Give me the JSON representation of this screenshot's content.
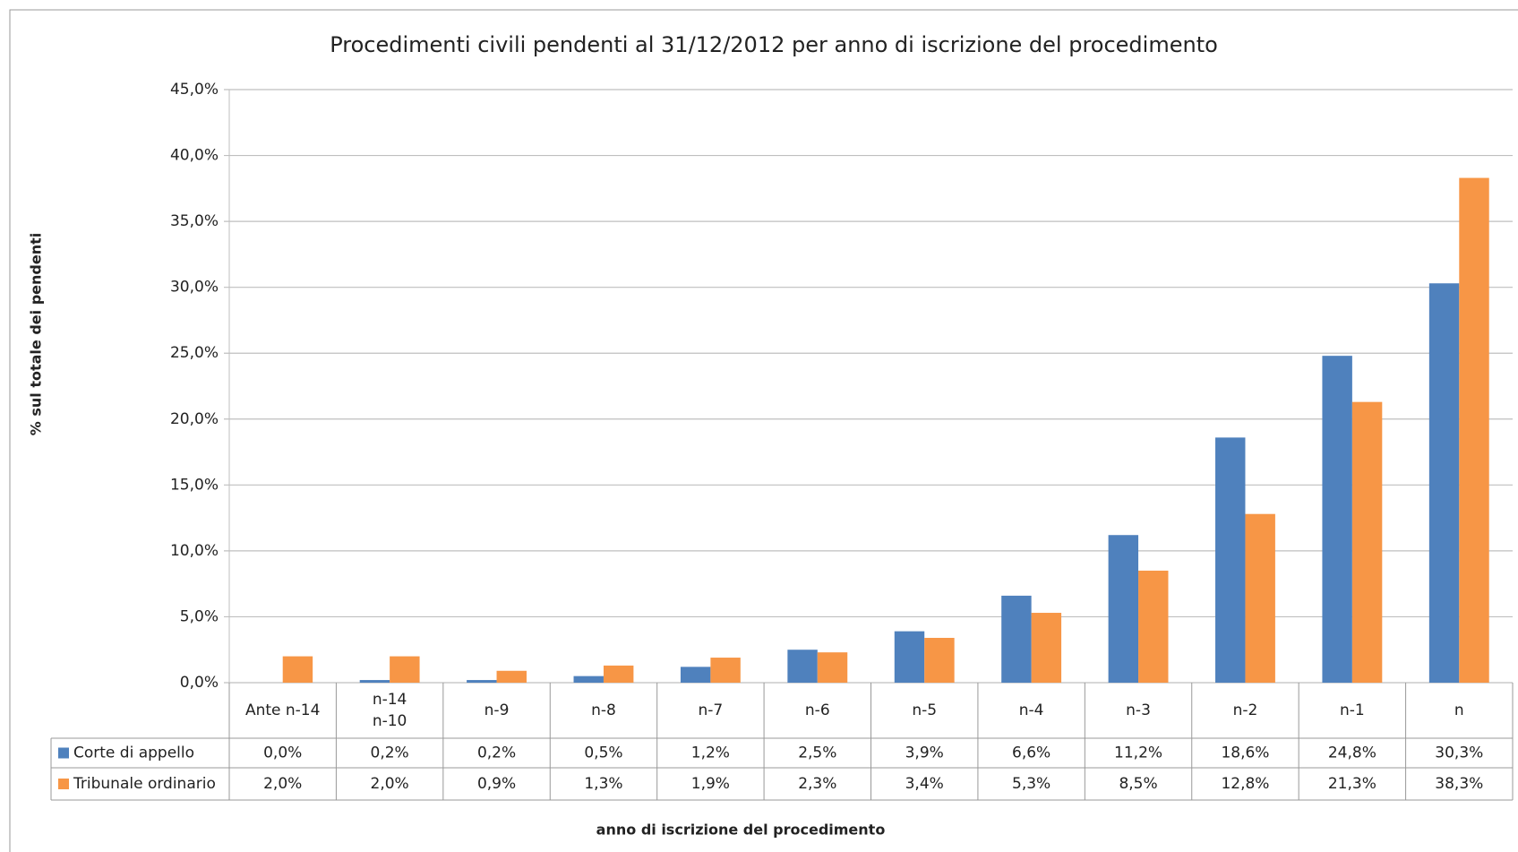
{
  "chart_data": {
    "type": "bar",
    "title": "Procedimenti civili pendenti al 31/12/2012 per anno  di iscrizione del procedimento",
    "x_label": "anno di iscrizione del procedimento",
    "y_label": "% sul totale dei pendenti",
    "categories": [
      "Ante n-14",
      "n-14\nn-10",
      "n-9",
      "n-8",
      "n-7",
      "n-6",
      "n-5",
      "n-4",
      "n-3",
      "n-2",
      "n-1",
      "n"
    ],
    "series": [
      {
        "name": "Corte di appello",
        "color": "#4f81bd",
        "values": [
          0.0,
          0.2,
          0.2,
          0.5,
          1.2,
          2.5,
          3.9,
          6.6,
          11.2,
          18.6,
          24.8,
          30.3
        ],
        "value_labels": [
          "0,0%",
          "0,2%",
          "0,2%",
          "0,5%",
          "1,2%",
          "2,5%",
          "3,9%",
          "6,6%",
          "11,2%",
          "18,6%",
          "24,8%",
          "30,3%"
        ]
      },
      {
        "name": "Tribunale ordinario",
        "color": "#f79646",
        "values": [
          2.0,
          2.0,
          0.9,
          1.3,
          1.9,
          2.3,
          3.4,
          5.3,
          8.5,
          12.8,
          21.3,
          38.3
        ],
        "value_labels": [
          "2,0%",
          "2,0%",
          "0,9%",
          "1,3%",
          "1,9%",
          "2,3%",
          "3,4%",
          "5,3%",
          "8,5%",
          "12,8%",
          "21,3%",
          "38,3%"
        ]
      }
    ],
    "ylim": [
      0,
      45
    ],
    "yticks": [
      {
        "value": 0,
        "label": "0,0%"
      },
      {
        "value": 5,
        "label": "5,0%"
      },
      {
        "value": 10,
        "label": "10,0%"
      },
      {
        "value": 15,
        "label": "15,0%"
      },
      {
        "value": 20,
        "label": "20,0%"
      },
      {
        "value": 25,
        "label": "25,0%"
      },
      {
        "value": 30,
        "label": "30,0%"
      },
      {
        "value": 35,
        "label": "35,0%"
      },
      {
        "value": 40,
        "label": "40,0%"
      },
      {
        "value": 45,
        "label": "45,0%"
      }
    ],
    "grid": true
  }
}
